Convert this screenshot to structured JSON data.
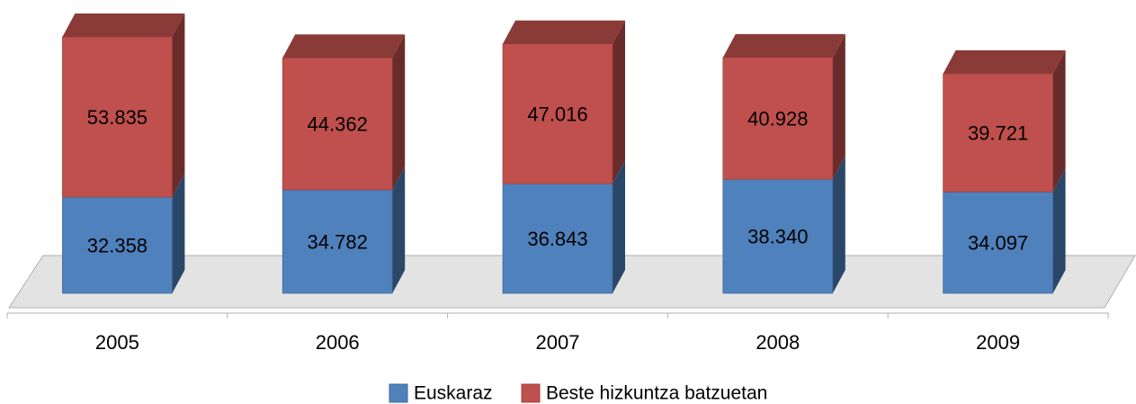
{
  "chart_data": {
    "type": "bar",
    "stacked": true,
    "three_d": true,
    "categories": [
      "2005",
      "2006",
      "2007",
      "2008",
      "2009"
    ],
    "series": [
      {
        "name": "Euskaraz",
        "color": "#4f81bd",
        "values": [
          32358,
          34782,
          36843,
          38340,
          34097
        ],
        "value_labels": [
          "32.358",
          "34.782",
          "36.843",
          "38.340",
          "34.097"
        ]
      },
      {
        "name": "Beste hizkuntza batzuetan",
        "color": "#c0504d",
        "values": [
          53835,
          44362,
          47016,
          40928,
          39721
        ],
        "value_labels": [
          "53.835",
          "44.362",
          "47.016",
          "40.928",
          "39.721"
        ]
      }
    ],
    "legend": "bottom"
  }
}
